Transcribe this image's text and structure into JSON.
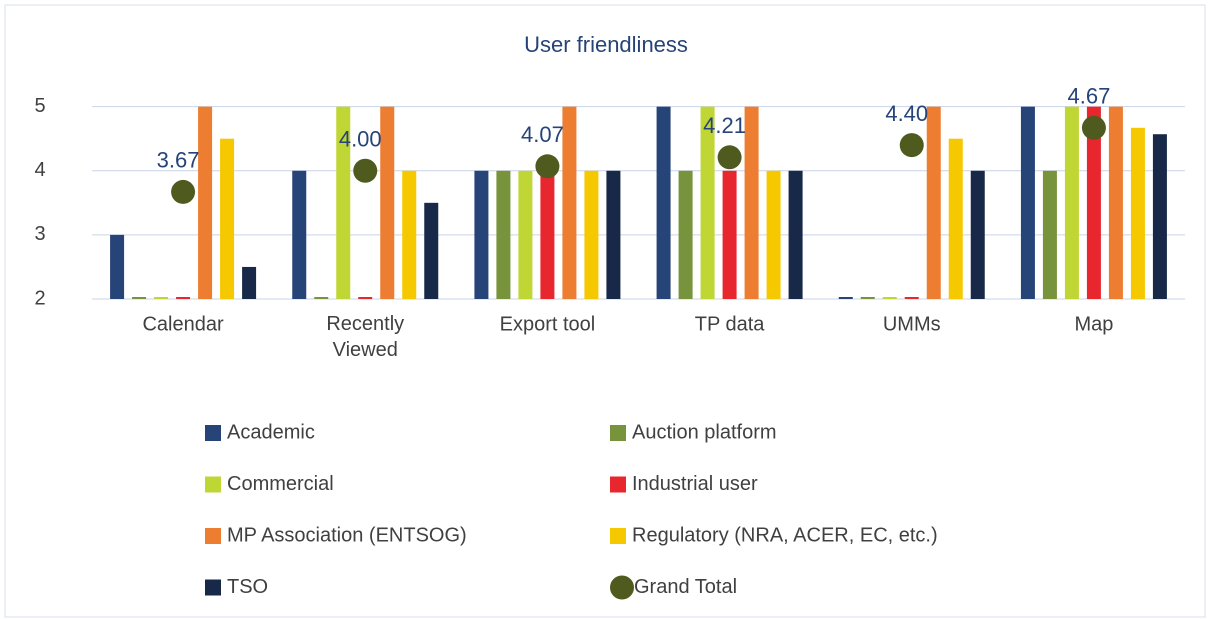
{
  "chart_data": {
    "type": "bar",
    "title": "User friendliness",
    "categories": [
      "Calendar",
      "Recently Viewed",
      "Export tool",
      "TP data",
      "UMMs",
      "Map"
    ],
    "ylim": [
      2,
      5.4
    ],
    "yticks": [
      2,
      3,
      4,
      5
    ],
    "grid": true,
    "series": [
      {
        "name": "Academic",
        "color": "#264478",
        "values": [
          3,
          4,
          4,
          5,
          2,
          5
        ]
      },
      {
        "name": "Auction platform",
        "color": "#77933c",
        "values": [
          2,
          2,
          4,
          4,
          2,
          4
        ]
      },
      {
        "name": "Commercial",
        "color": "#c0d634",
        "values": [
          2,
          5,
          4,
          5,
          2,
          5
        ]
      },
      {
        "name": "Industrial user",
        "color": "#e8262e",
        "values": [
          2,
          2,
          4,
          4,
          2,
          5
        ]
      },
      {
        "name": "MP Association (ENTSOG)",
        "color": "#ed7d31",
        "values": [
          5,
          5,
          5,
          5,
          5,
          5
        ]
      },
      {
        "name": "Regulatory (NRA, ACER, EC, etc.)",
        "color": "#f5c800",
        "values": [
          4.5,
          4,
          4,
          4,
          4.5,
          4.67
        ]
      },
      {
        "name": "TSO",
        "color": "#172848",
        "values": [
          2.5,
          3.5,
          4,
          4,
          4,
          4.57
        ]
      },
      {
        "name": "Grand Total",
        "color": "#4e5a1e",
        "type": "scatter",
        "values": [
          3.67,
          4.0,
          4.07,
          4.21,
          4.4,
          4.67
        ],
        "value_labels": [
          "3.67",
          "4.00",
          "4.07",
          "4.21",
          "4.40",
          "4.67"
        ]
      }
    ]
  }
}
